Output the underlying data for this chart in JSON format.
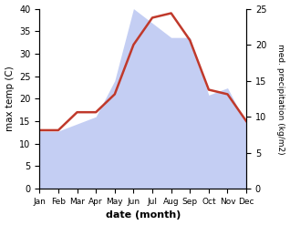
{
  "months": [
    "Jan",
    "Feb",
    "Mar",
    "Apr",
    "May",
    "Jun",
    "Jul",
    "Aug",
    "Sep",
    "Oct",
    "Nov",
    "Dec"
  ],
  "temperature": [
    13,
    13,
    17,
    17,
    21,
    32,
    38,
    39,
    33,
    22,
    21,
    15
  ],
  "precipitation": [
    8,
    8,
    9,
    10,
    15,
    25,
    23,
    21,
    21,
    13,
    14,
    9
  ],
  "temp_ylim": [
    0,
    40
  ],
  "precip_ylim": [
    0,
    25
  ],
  "temp_color": "#c0392b",
  "fill_color": "#b0bef0",
  "fill_alpha": 0.75,
  "xlabel": "date (month)",
  "ylabel_left": "max temp (C)",
  "ylabel_right": "med. precipitation (kg/m2)",
  "bg_color": "#ffffff",
  "line_width": 1.8
}
